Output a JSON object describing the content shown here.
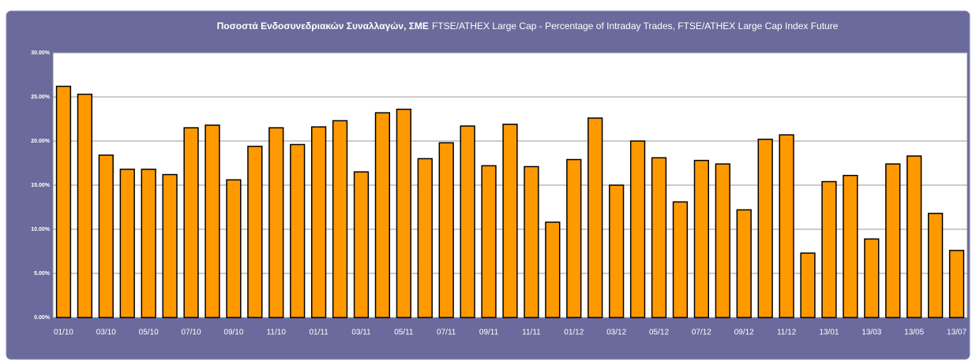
{
  "chart_data": {
    "type": "bar",
    "title": "Ποσοστά Ενδοσυνεδριακών Συναλλαγών, ΣΜΕ",
    "subtitle": "FTSE/ATHEX Large Cap - Percentage of Intraday Trades, FTSE/ATHEX Large Cap Index Future",
    "categories": [
      "01/10",
      null,
      "03/10",
      null,
      "05/10",
      null,
      "07/10",
      null,
      "09/10",
      null,
      "11/10",
      null,
      "01/11",
      null,
      "03/11",
      null,
      "05/11",
      null,
      "07/11",
      null,
      "09/11",
      null,
      "11/11",
      null,
      "01/12",
      null,
      "03/12",
      null,
      "05/12",
      null,
      "07/12",
      null,
      "09/12",
      null,
      "11/12",
      null,
      "13/01",
      null,
      "13/03",
      null,
      "13/05",
      null,
      "13/07"
    ],
    "values": [
      26.2,
      25.3,
      18.4,
      16.8,
      16.8,
      16.2,
      21.5,
      21.8,
      15.6,
      19.4,
      21.5,
      19.6,
      21.6,
      22.3,
      16.5,
      23.2,
      23.6,
      18.0,
      19.8,
      21.7,
      17.2,
      21.9,
      17.1,
      10.8,
      17.9,
      22.6,
      15.0,
      20.0,
      18.1,
      13.1,
      17.8,
      17.4,
      12.2,
      20.2,
      20.7,
      7.3,
      15.4,
      16.1,
      8.9,
      17.4,
      18.3,
      11.8,
      7.6
    ],
    "color": "#ff9900",
    "ylim": [
      0,
      30
    ],
    "yticks": [
      {
        "value": 0,
        "label": "0.00%"
      },
      {
        "value": 5,
        "label": "5.00%"
      },
      {
        "value": 10,
        "label": "10.00%"
      },
      {
        "value": 15,
        "label": "15.00%"
      },
      {
        "value": 20,
        "label": "20.00%"
      },
      {
        "value": 25,
        "label": "25.00%"
      },
      {
        "value": 30,
        "label": "30.00%"
      }
    ],
    "grid": true
  }
}
